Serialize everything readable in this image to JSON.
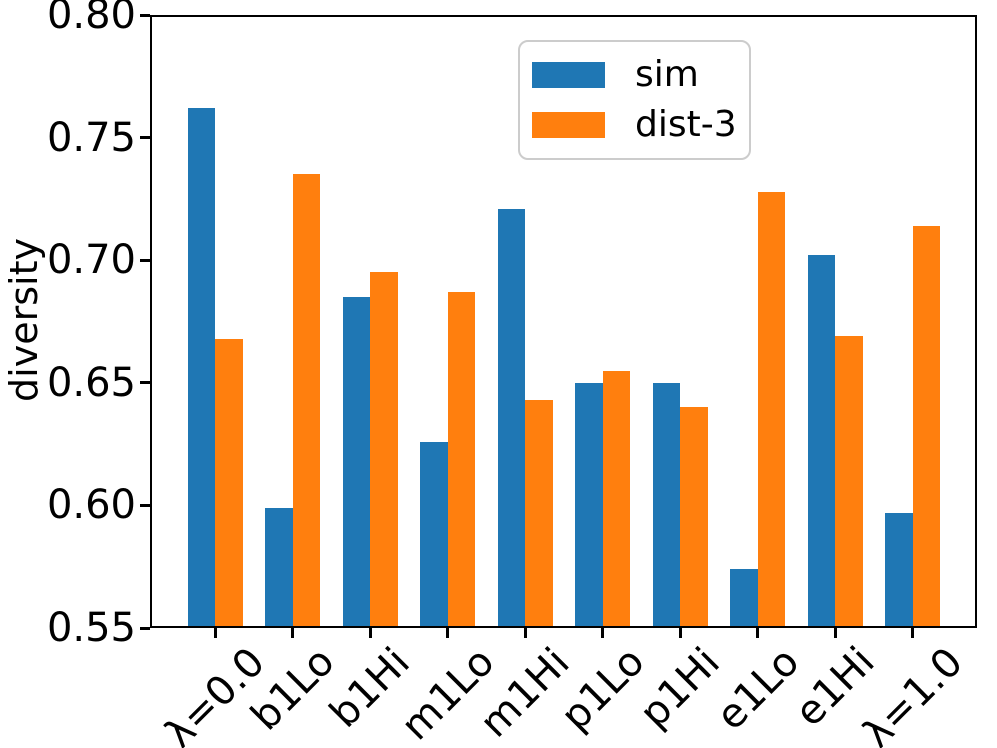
{
  "chart_data": {
    "type": "bar",
    "title": "",
    "xlabel": "",
    "ylabel": "diversity",
    "ylim": [
      0.55,
      0.8
    ],
    "yticks": [
      0.8,
      0.75,
      0.7,
      0.65,
      0.6,
      0.55
    ],
    "ytick_labels": [
      "0.80",
      "0.75",
      "0.70",
      "0.65",
      "0.60",
      "0.55"
    ],
    "categories": [
      "λ=0.0",
      "b1Lo",
      "b1Hi",
      "m1Lo",
      "m1Hi",
      "p1Lo",
      "p1Hi",
      "e1Lo",
      "e1Hi",
      "λ=1.0"
    ],
    "series": [
      {
        "name": "sim",
        "color": "#1f77b4",
        "values": [
          0.762,
          0.599,
          0.685,
          0.626,
          0.721,
          0.65,
          0.65,
          0.574,
          0.702,
          0.597
        ]
      },
      {
        "name": "dist-3",
        "color": "#ff7f0e",
        "values": [
          0.668,
          0.735,
          0.695,
          0.687,
          0.643,
          0.655,
          0.64,
          0.728,
          0.669,
          0.714
        ]
      }
    ],
    "grid": false,
    "legend_position": "upper right inside",
    "x_tick_rotation_deg": 45
  }
}
